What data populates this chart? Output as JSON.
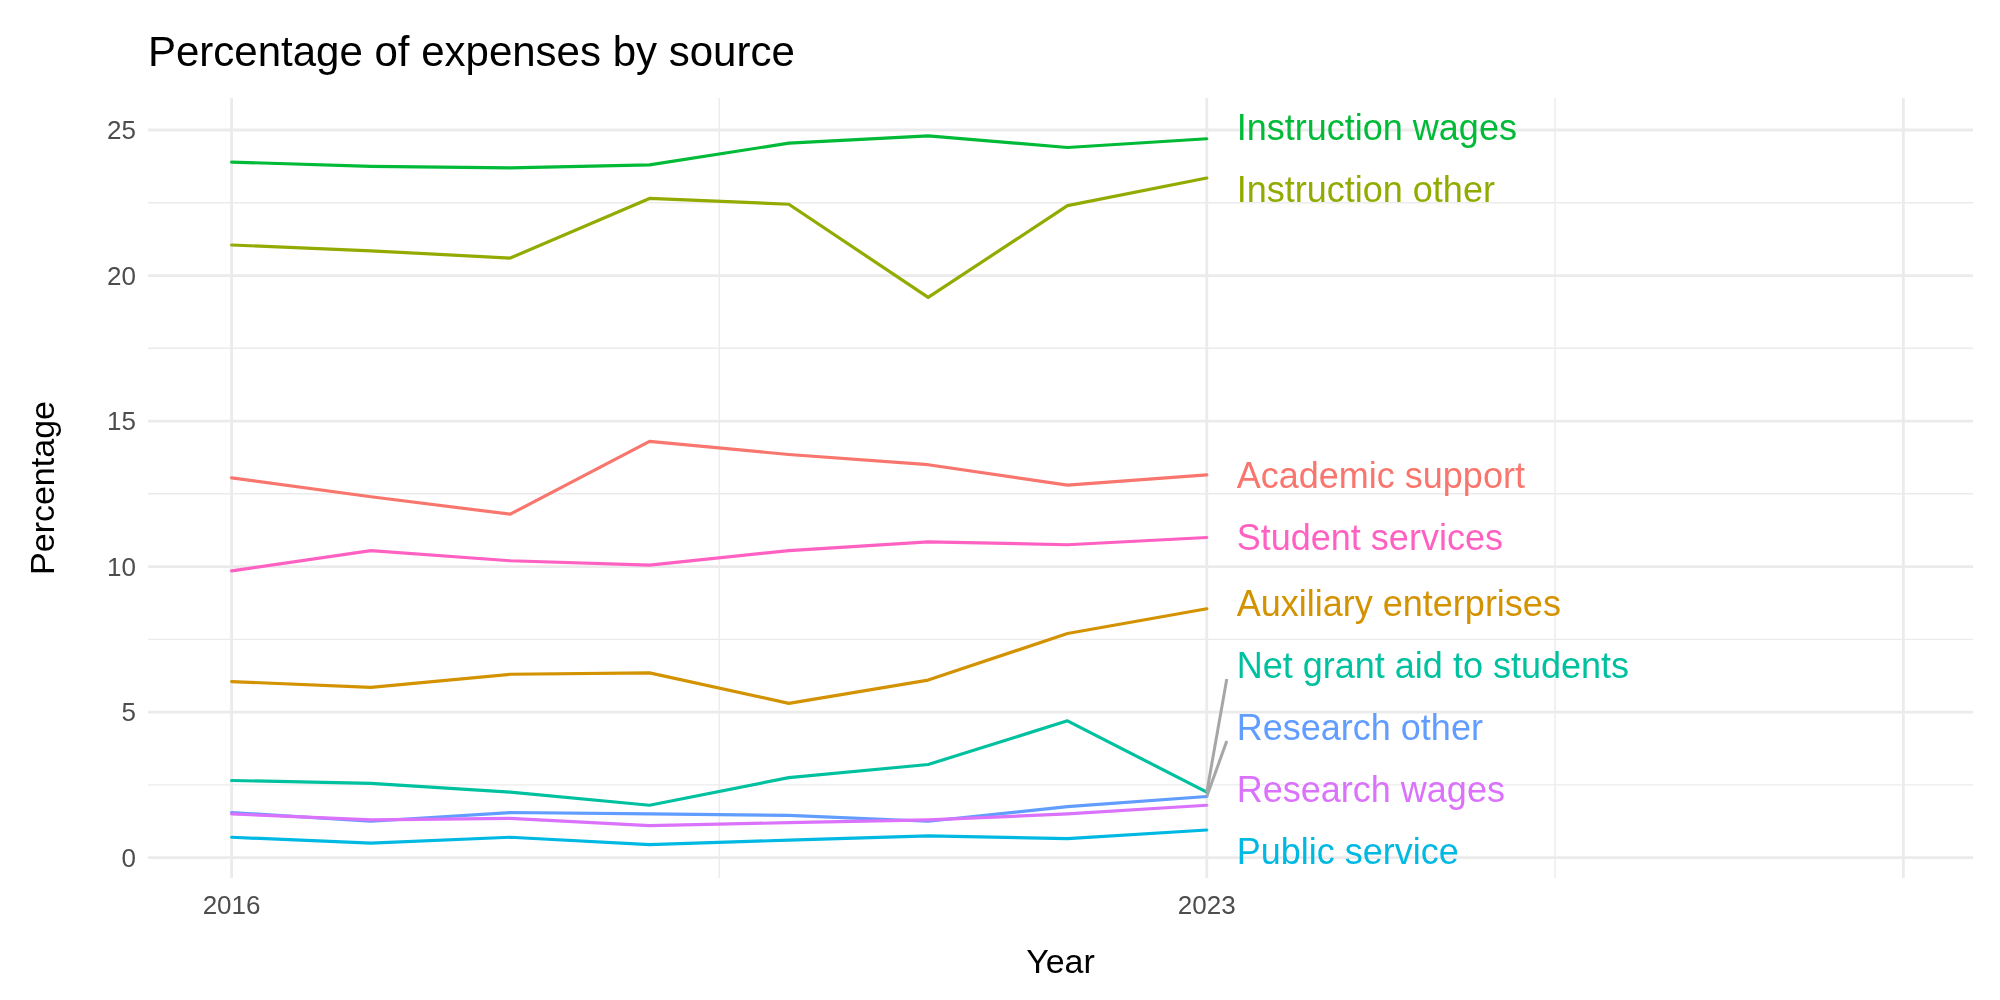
{
  "chart_data": {
    "type": "line",
    "title": "Percentage of expenses by source",
    "xlabel": "Year",
    "ylabel": "Percentage",
    "x": [
      2016,
      2017,
      2018,
      2019,
      2020,
      2021,
      2022,
      2023
    ],
    "xlim": [
      2015.4,
      2028.5
    ],
    "xticks": [
      2016,
      {
        "value": 2019.5,
        "label": null
      },
      2023,
      {
        "value": 2025.5,
        "label": null
      },
      {
        "value": 2028,
        "label": null
      }
    ],
    "ylim": [
      -0.7,
      26.1
    ],
    "yticks": [
      0,
      {
        "value": 2.5,
        "label": null
      },
      5,
      {
        "value": 7.5,
        "label": null
      },
      10,
      {
        "value": 12.5,
        "label": null
      },
      15,
      {
        "value": 17.5,
        "label": null
      },
      20,
      {
        "value": 22.5,
        "label": null
      },
      25
    ],
    "grid": true,
    "marker": "none",
    "line_style": "solid",
    "series": [
      {
        "name": "Instruction wages",
        "color": "#00ba38",
        "values": [
          23.9,
          23.75,
          23.7,
          23.8,
          24.55,
          24.8,
          24.4,
          24.7
        ]
      },
      {
        "name": "Instruction other",
        "color": "#93aa00",
        "values": [
          21.05,
          20.85,
          20.6,
          22.65,
          22.45,
          19.25,
          22.4,
          23.35
        ]
      },
      {
        "name": "Academic support",
        "color": "#f8766d",
        "values": [
          13.05,
          12.4,
          11.8,
          14.3,
          13.85,
          13.5,
          12.8,
          13.15
        ]
      },
      {
        "name": "Student services",
        "color": "#ff61c3",
        "values": [
          9.85,
          10.55,
          10.2,
          10.05,
          10.55,
          10.85,
          10.75,
          11.0
        ]
      },
      {
        "name": "Auxiliary enterprises",
        "color": "#d39200",
        "values": [
          6.05,
          5.85,
          6.3,
          6.35,
          5.3,
          6.1,
          7.7,
          8.55
        ]
      },
      {
        "name": "Net grant aid to students",
        "color": "#00c19f",
        "values": [
          2.65,
          2.55,
          2.25,
          1.8,
          2.75,
          3.2,
          4.7,
          2.25
        ]
      },
      {
        "name": "Research other",
        "color": "#619cff",
        "values": [
          1.55,
          1.25,
          1.55,
          1.5,
          1.45,
          1.25,
          1.75,
          2.1
        ]
      },
      {
        "name": "Research wages",
        "color": "#db72fb",
        "values": [
          1.5,
          1.3,
          1.35,
          1.1,
          1.2,
          1.3,
          1.5,
          1.8
        ]
      },
      {
        "name": "Public service",
        "color": "#00b9e3",
        "values": [
          0.7,
          0.5,
          0.7,
          0.45,
          0.6,
          0.75,
          0.65,
          0.95
        ]
      }
    ]
  }
}
